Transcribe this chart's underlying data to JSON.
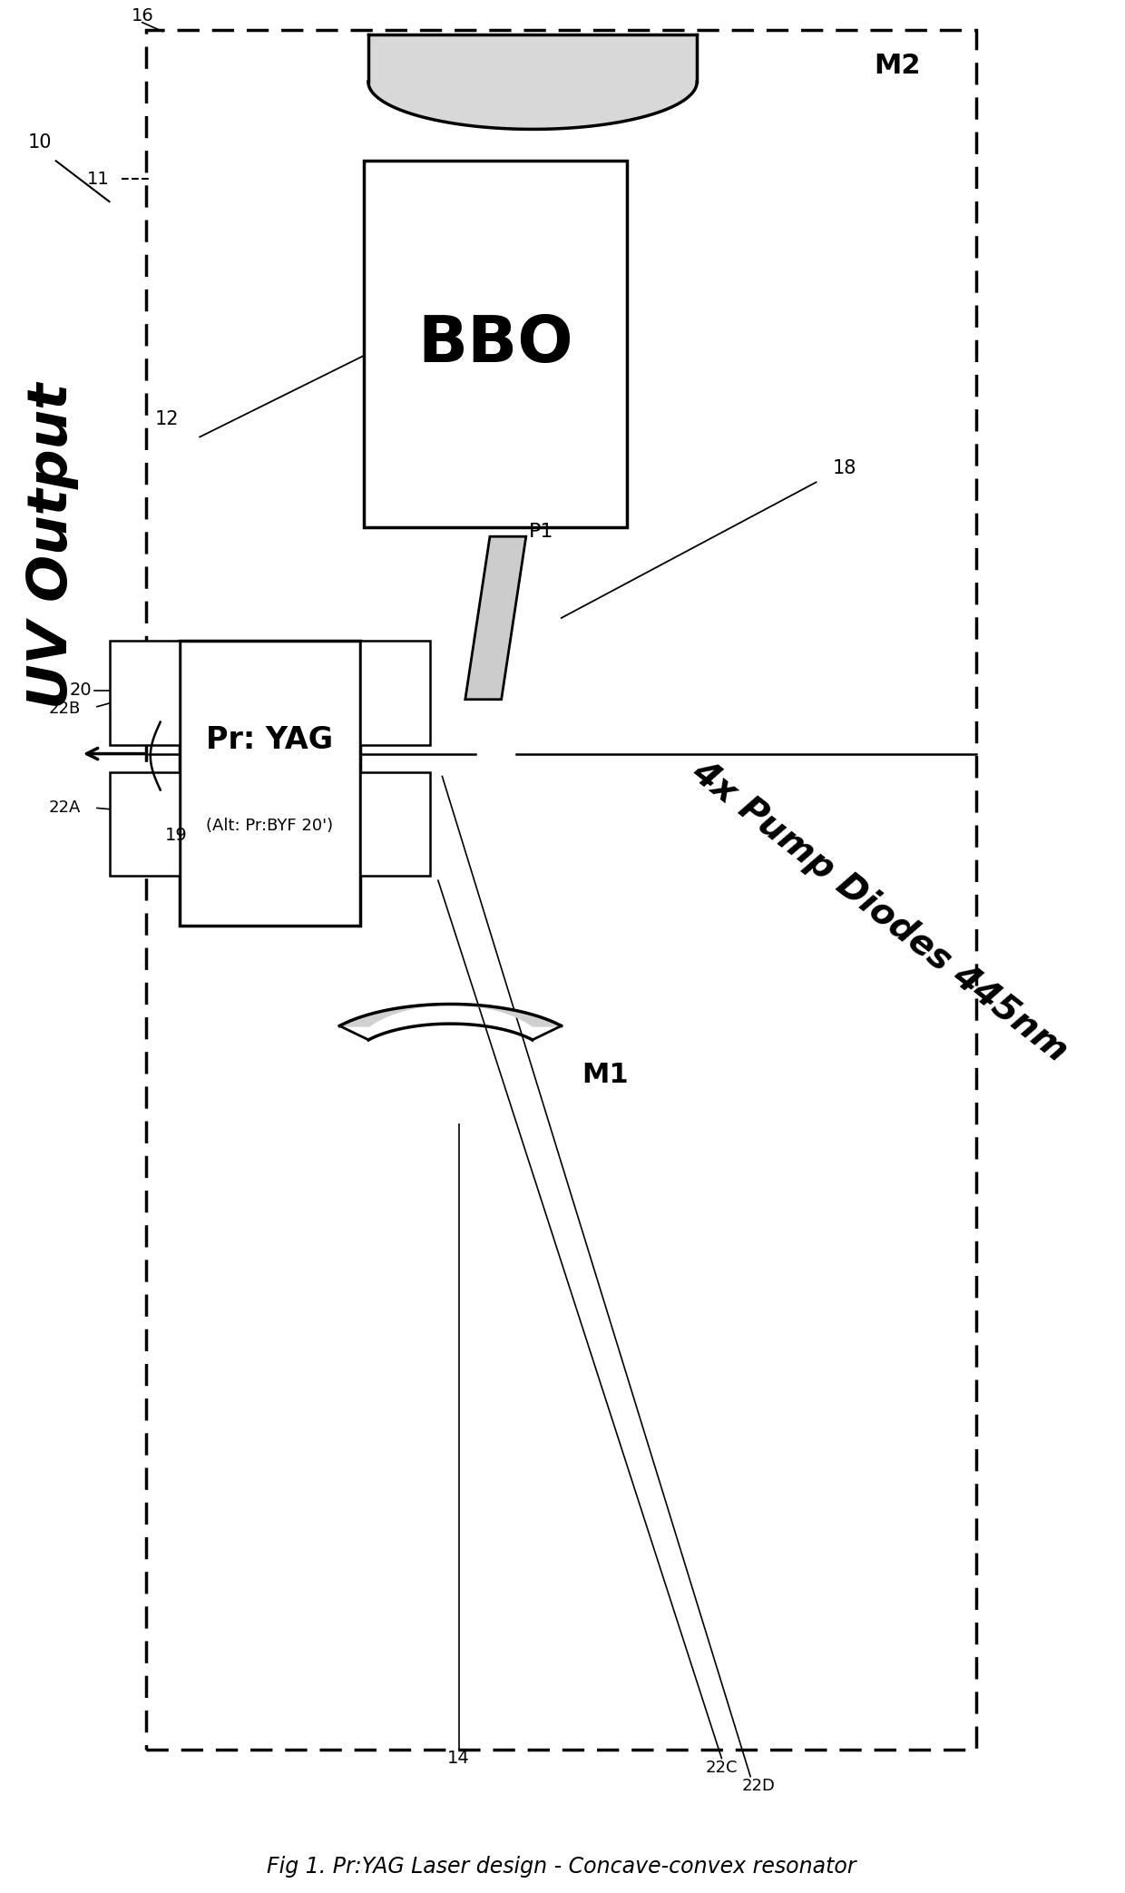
{
  "title": "Fig 1. Pr:YAG Laser design - Concave-convex resonator",
  "uv_output_text": "UV Output",
  "pump_diodes_text": "4x Pump Diodes 445nm",
  "bbo_text": "BBO",
  "yag_text": "Pr: YAG",
  "yag_subtext": "(Alt: Pr:BYF 20')",
  "m1_text": "M1",
  "m2_text": "M2",
  "p1_text": "P1",
  "bg_color": "#ffffff",
  "fig_width": 12.4,
  "fig_height": 20.86,
  "dpi": 100
}
